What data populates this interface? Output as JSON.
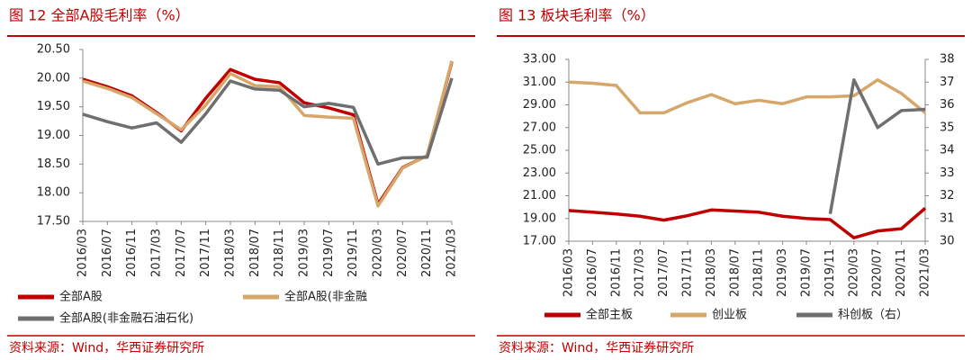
{
  "chart_data": [
    {
      "type": "line",
      "title": "图 12 全部A股毛利率（%）",
      "source": "资料来源：Wind，华西证券研究所",
      "categories": [
        "2016/03",
        "2016/07",
        "2016/11",
        "2017/03",
        "2017/07",
        "2017/11",
        "2018/03",
        "2018/07",
        "2018/11",
        "2019/03",
        "2019/07",
        "2019/11",
        "2020/03",
        "2020/07",
        "2020/11",
        "2021/03"
      ],
      "series": [
        {
          "name": "全部A股",
          "color": "#c00000",
          "values": [
            19.98,
            19.85,
            19.69,
            19.4,
            19.08,
            19.65,
            20.15,
            19.98,
            19.92,
            19.57,
            19.48,
            19.36,
            17.8,
            18.44,
            18.65,
            20.28
          ]
        },
        {
          "name": "全部A股(非金融",
          "color": "#d6a76b",
          "values": [
            19.95,
            19.82,
            19.66,
            19.38,
            19.1,
            19.53,
            20.08,
            19.87,
            19.85,
            19.35,
            19.32,
            19.3,
            17.77,
            18.43,
            18.65,
            20.3
          ]
        },
        {
          "name": "全部A股(非金融石油石化)",
          "color": "#6f6f6f",
          "values": [
            19.37,
            19.24,
            19.13,
            19.22,
            18.88,
            19.38,
            19.95,
            19.81,
            19.79,
            19.5,
            19.56,
            19.49,
            18.5,
            18.61,
            18.62,
            20.0
          ]
        }
      ],
      "ylim": [
        17.5,
        20.5
      ],
      "yticks": [
        {
          "value": 17.5,
          "label": "17.50"
        },
        {
          "value": 18,
          "label": "18.00"
        },
        {
          "value": 18.5,
          "label": "18.50"
        },
        {
          "value": 19,
          "label": "19.00"
        },
        {
          "value": 19.5,
          "label": "19.50"
        },
        {
          "value": 20,
          "label": "20.00"
        },
        {
          "value": 20.5,
          "label": "20.50"
        }
      ]
    },
    {
      "type": "line",
      "title": "图 13 板块毛利率（%）",
      "source": "资料来源：Wind，华西证券研究所",
      "categories": [
        "2016/03",
        "2016/07",
        "2016/11",
        "2017/03",
        "2017/07",
        "2017/11",
        "2018/03",
        "2018/07",
        "2018/11",
        "2019/03",
        "2019/07",
        "2019/11",
        "2020/03",
        "2020/07",
        "2020/11",
        "2021/03"
      ],
      "series": [
        {
          "name": "全部主板",
          "color": "#c00000",
          "values": [
            19.7,
            19.55,
            19.4,
            19.2,
            18.85,
            19.25,
            19.75,
            19.65,
            19.55,
            19.2,
            19.0,
            18.9,
            17.3,
            17.9,
            18.1,
            19.9
          ]
        },
        {
          "name": "创业板",
          "color": "#d6a76b",
          "values": [
            31.0,
            30.9,
            30.7,
            28.3,
            28.3,
            29.2,
            29.9,
            29.1,
            29.4,
            29.1,
            29.7,
            29.7,
            29.8,
            31.2,
            30.0,
            28.3
          ]
        },
        {
          "name": "科创板（右）",
          "color": "#6f6f6f",
          "axis": "y2",
          "values": [
            null,
            null,
            null,
            null,
            null,
            null,
            null,
            null,
            null,
            null,
            null,
            31.2,
            37.1,
            35.0,
            35.75,
            35.8
          ]
        }
      ],
      "ylim": [
        17,
        33
      ],
      "yticks": [
        {
          "value": 17,
          "label": "17.00"
        },
        {
          "value": 19,
          "label": "19.00"
        },
        {
          "value": 21,
          "label": "21.00"
        },
        {
          "value": 23,
          "label": "23.00"
        },
        {
          "value": 25,
          "label": "25.00"
        },
        {
          "value": 27,
          "label": "27.00"
        },
        {
          "value": 29,
          "label": "29.00"
        },
        {
          "value": 31,
          "label": "31.00"
        },
        {
          "value": 33,
          "label": "33.00"
        }
      ],
      "y2lim": [
        30,
        38
      ],
      "y2ticks": [
        30,
        31,
        32,
        33,
        34,
        35,
        36,
        37,
        38
      ]
    }
  ]
}
